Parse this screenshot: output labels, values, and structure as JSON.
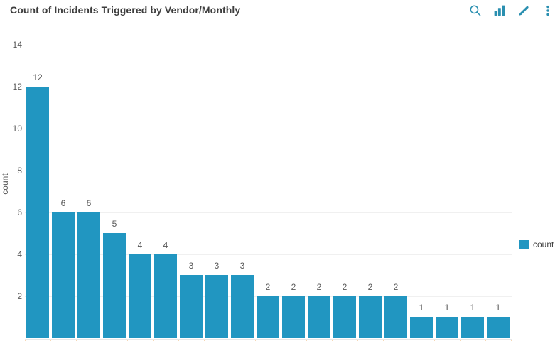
{
  "header": {
    "title": "Count of Incidents Triggered by Vendor/Monthly",
    "toolbar_icons": [
      "search-icon",
      "bar-chart-icon",
      "edit-brush-icon",
      "kebab-menu-icon"
    ]
  },
  "chart_data": {
    "type": "bar",
    "title": "Count of Incidents Triggered by Vendor/Monthly",
    "values": [
      12,
      6,
      6,
      5,
      4,
      4,
      3,
      3,
      3,
      2,
      2,
      2,
      2,
      2,
      2,
      1,
      1,
      1,
      1
    ],
    "value_labels": [
      "12",
      "6",
      "6",
      "5",
      "4",
      "4",
      "3",
      "3",
      "3",
      "2",
      "2",
      "2",
      "2",
      "2",
      "2",
      "1",
      "1",
      "1",
      "1"
    ],
    "yticks": [
      2,
      4,
      6,
      8,
      10,
      12,
      14
    ],
    "ylim": [
      0,
      14
    ],
    "xlabel": "",
    "ylabel": "count",
    "grid": true,
    "legend": {
      "label": "count",
      "position": "right"
    }
  },
  "colors": {
    "background": "#ffffff",
    "bar": "#2196c1",
    "icon": "#2a8fb0",
    "title_text": "#3e3e3e",
    "axis_text": "#595959",
    "legend_text": "#3f3f3f",
    "gridline": "#f0f0f0",
    "baseline": "#e8e8e8",
    "bottom_tick": "#f5d7b5"
  }
}
